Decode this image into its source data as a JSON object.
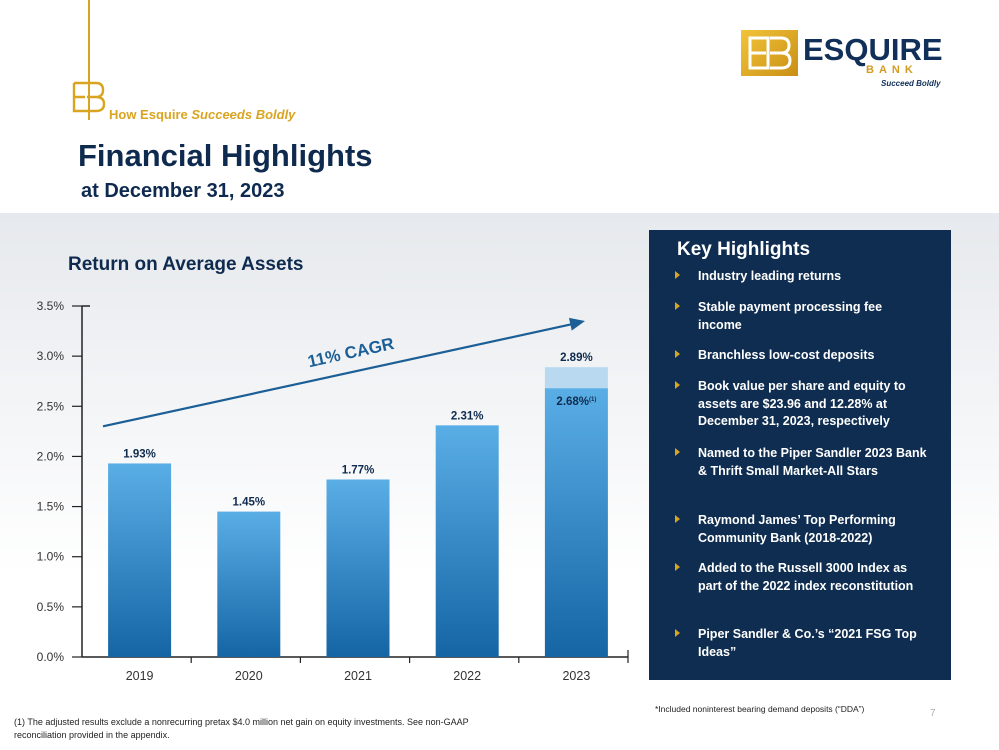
{
  "header": {
    "tagline_prefix": "How Esquire",
    "tagline_italic": "Succeeds Boldly",
    "title": "Financial Highlights",
    "subtitle": "at December 31, 2023"
  },
  "logo": {
    "word": "ESQUIRE",
    "bank": "BANK",
    "tagline": "Succeed Boldly",
    "gold_color": "#d9a521",
    "navy_color": "#0e2b4f"
  },
  "chart_data": {
    "type": "bar",
    "title": "Return on Average Assets",
    "categories": [
      "2019",
      "2020",
      "2021",
      "2022",
      "2023"
    ],
    "values": [
      1.93,
      1.45,
      1.77,
      2.31,
      2.89
    ],
    "labels": [
      "1.93%",
      "1.45%",
      "1.77%",
      "2.31%",
      "2.89%"
    ],
    "adjusted": {
      "category": "2023",
      "value": 2.68,
      "label": "2.68%",
      "note_marker": "(1)"
    },
    "ylim": [
      0,
      3.5
    ],
    "yticks": [
      0.0,
      0.5,
      1.0,
      1.5,
      2.0,
      2.5,
      3.0,
      3.5
    ],
    "ytick_labels": [
      "0.0%",
      "0.5%",
      "1.0%",
      "1.5%",
      "2.0%",
      "2.5%",
      "3.0%",
      "3.5%"
    ],
    "trend_label": "11% CAGR",
    "trend": {
      "start": 2.3,
      "end": 3.35
    },
    "grid": false,
    "legend": "none",
    "bar_color": "#1c6fae",
    "adjusted_color": "#b8d9f0"
  },
  "key_highlights": {
    "title": "Key Highlights",
    "items": [
      "Industry leading returns",
      "Stable payment processing fee income",
      "Branchless low-cost deposits",
      "Book value per share and equity to assets are $23.96 and 12.28% at December 31, 2023, respectively",
      "Named to the Piper Sandler 2023 Bank & Thrift Small Market-All Stars",
      "Raymond James’ Top Performing Community Bank (2018-2022)",
      "Added to the Russell 3000 Index as part of the 2022 index reconstitution",
      "Piper Sandler & Co.’s “2021 FSG Top Ideas”"
    ]
  },
  "footnotes": {
    "dda": "*Included noninterest bearing demand deposits (“DDA”)",
    "adjusted": "(1) The adjusted results exclude a nonrecurring pretax $4.0 million net gain on equity investments. See non-GAAP reconciliation provided in the appendix.",
    "page_number": "7"
  }
}
